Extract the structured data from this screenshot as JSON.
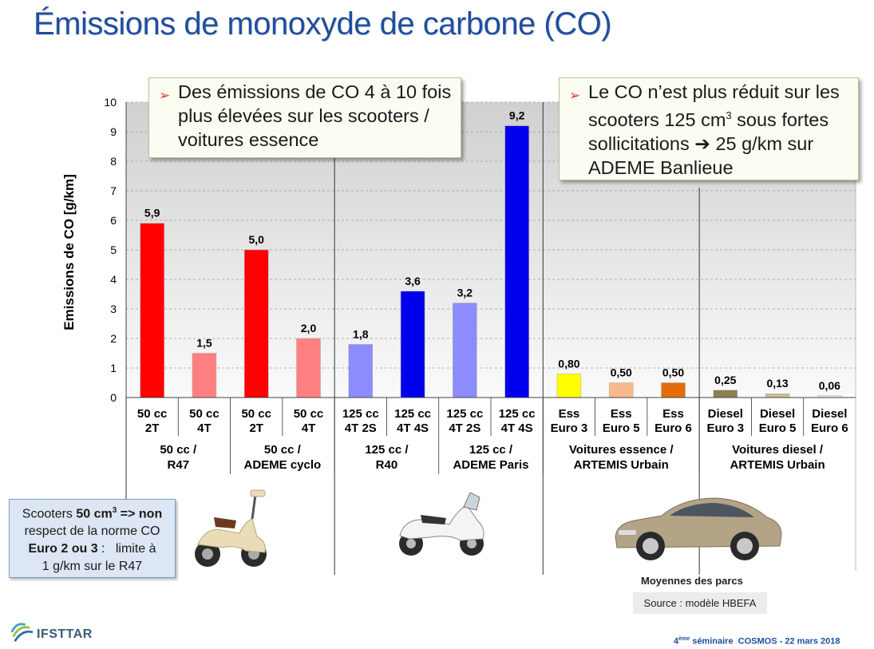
{
  "slide": {
    "title": "Émissions de monoxyde de carbone (CO)",
    "callout_left": "Des émissions de CO 4 à 10 fois plus élevées sur les scooters / voitures essence",
    "callout_right_part1": "Le CO n’est plus réduit sur les scooters 125 cm",
    "callout_right_sup": "3",
    "callout_right_part2": " sous fortes sollicitations ➔ 25 g/km sur ADEME Banlieue",
    "note_line1_a": "Scooters ",
    "note_line1_b": "50 cm",
    "note_line1_sup": "3",
    "note_line1_c": " => non",
    "note_line2": "respect de la norme CO",
    "note_line3_a": "Euro 2 ou 3",
    "note_line3_b": " :   limite à",
    "note_line4": "1 g/km sur le R47",
    "fleet_label": "Moyennes des parcs",
    "source": "Source : modèle HBEFA",
    "logo_text": "IFSTTAR",
    "footer_sup": "ème",
    "footer_num": "4",
    "footer_rest": " séminaire  COSMOS - 22 mars 2018"
  },
  "chart_data": {
    "type": "bar",
    "ylabel": "Emissions de CO   [g/km]",
    "ylim": [
      0,
      10
    ],
    "yticks": [
      "0",
      "1",
      "2",
      "3",
      "4",
      "5",
      "6",
      "7",
      "8",
      "9",
      "10"
    ],
    "grid": true,
    "categories": [
      [
        "50 cc",
        "2T"
      ],
      [
        "50 cc",
        "4T"
      ],
      [
        "50 cc",
        "2T"
      ],
      [
        "50 cc",
        "4T"
      ],
      [
        "125 cc",
        "4T 2S"
      ],
      [
        "125 cc",
        "4T 4S"
      ],
      [
        "125 cc",
        "4T 2S"
      ],
      [
        "125 cc",
        "4T 4S"
      ],
      [
        "Ess",
        "Euro 3"
      ],
      [
        "Ess",
        "Euro 5"
      ],
      [
        "Ess",
        "Euro 6"
      ],
      [
        "Diesel",
        "Euro 3"
      ],
      [
        "Diesel",
        "Euro 5"
      ],
      [
        "Diesel",
        "Euro 6"
      ]
    ],
    "values": [
      5.9,
      1.5,
      5.0,
      2.0,
      1.8,
      3.6,
      3.2,
      9.2,
      0.8,
      0.5,
      0.5,
      0.25,
      0.13,
      0.06
    ],
    "value_labels": [
      "5,9",
      "1,5",
      "5,0",
      "2,0",
      "1,8",
      "3,6",
      "3,2",
      "9,2",
      "0,80",
      "0,50",
      "0,50",
      "0,25",
      "0,13",
      "0,06"
    ],
    "colors": [
      "#ff0000",
      "#ff8080",
      "#ff0000",
      "#ff8080",
      "#8c8cff",
      "#0000ee",
      "#8c8cff",
      "#0000ee",
      "#ffff00",
      "#f9b98a",
      "#e46c0a",
      "#8b8050",
      "#c8c09a",
      "#ece8d4"
    ],
    "groups": [
      {
        "lines": [
          "50 cc /",
          "R47"
        ],
        "span": 2
      },
      {
        "lines": [
          "50 cc /",
          "ADEME cyclo"
        ],
        "span": 2
      },
      {
        "lines": [
          "125 cc /",
          "R40"
        ],
        "span": 2
      },
      {
        "lines": [
          "125 cc /",
          "ADEME Paris"
        ],
        "span": 2
      },
      {
        "lines": [
          "Voitures essence /",
          "ARTEMIS Urbain"
        ],
        "span": 3
      },
      {
        "lines": [
          "Voitures diesel /",
          "ARTEMIS Urbain"
        ],
        "span": 3
      }
    ]
  }
}
